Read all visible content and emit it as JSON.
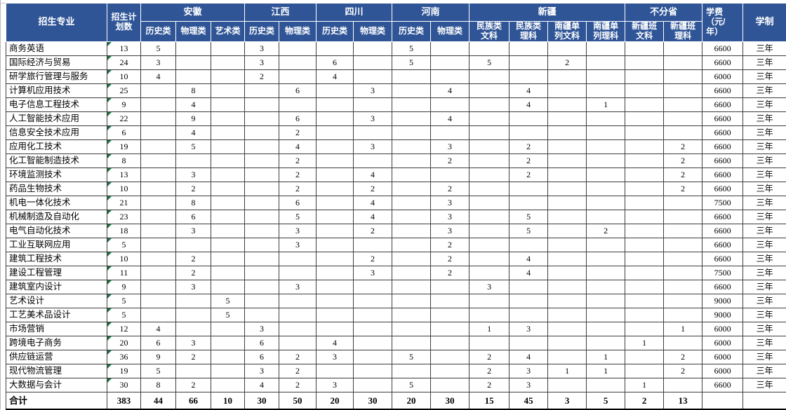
{
  "colors": {
    "header_bg": "#2F5597",
    "header_text": "#FFFFFF",
    "grid_line": "#3D3D3D",
    "error_triangle_green": "#1E7145"
  },
  "table": {
    "header": {
      "major": "招生专业",
      "plan": "招生计\n划数",
      "groups": [
        {
          "label": "安徽",
          "subs": [
            "历史类",
            "物理类",
            "艺术类"
          ]
        },
        {
          "label": "江西",
          "subs": [
            "历史类",
            "物理类"
          ]
        },
        {
          "label": "四川",
          "subs": [
            "历史类",
            "物理类"
          ]
        },
        {
          "label": "河南",
          "subs": [
            "历史类",
            "物理类"
          ]
        },
        {
          "label": "新疆",
          "subs": [
            "民族类\n文科",
            "民族类\n理科",
            "南疆单\n列文科",
            "南疆单\n列理科"
          ]
        },
        {
          "label": "不分省",
          "subs": [
            "新疆班\n文科",
            "新疆班\n理科"
          ]
        }
      ],
      "fee": "学费\n（元/\n年）",
      "duration": "学制"
    },
    "rows": [
      {
        "major": "商务英语",
        "plan": "13",
        "values": [
          "5",
          "",
          "",
          "3",
          "",
          "",
          "",
          "5",
          "",
          "",
          "",
          "",
          "",
          "",
          ""
        ],
        "fee": "6600",
        "duration": "三年"
      },
      {
        "major": "国际经济与贸易",
        "plan": "24",
        "values": [
          "3",
          "",
          "",
          "3",
          "",
          "6",
          "",
          "5",
          "",
          "5",
          "",
          "2",
          "",
          "",
          ""
        ],
        "fee": "6600",
        "duration": "三年"
      },
      {
        "major": "研学旅行管理与服务",
        "plan": "10",
        "values": [
          "4",
          "",
          "",
          "2",
          "",
          "4",
          "",
          "",
          "",
          "",
          "",
          "",
          "",
          "",
          ""
        ],
        "fee": "6000",
        "duration": "三年"
      },
      {
        "major": "计算机应用技术",
        "plan": "25",
        "values": [
          "",
          "8",
          "",
          "",
          "6",
          "",
          "3",
          "",
          "4",
          "",
          "4",
          "",
          "",
          "",
          ""
        ],
        "fee": "6600",
        "duration": "三年"
      },
      {
        "major": "电子信息工程技术",
        "plan": "9",
        "values": [
          "",
          "4",
          "",
          "",
          "",
          "",
          "",
          "",
          "",
          "",
          "4",
          "",
          "1",
          "",
          ""
        ],
        "fee": "6600",
        "duration": "三年"
      },
      {
        "major": "人工智能技术应用",
        "plan": "22",
        "values": [
          "",
          "9",
          "",
          "",
          "6",
          "",
          "3",
          "",
          "4",
          "",
          "",
          "",
          "",
          "",
          ""
        ],
        "fee": "6600",
        "duration": "三年"
      },
      {
        "major": "信息安全技术应用",
        "plan": "6",
        "values": [
          "",
          "4",
          "",
          "",
          "2",
          "",
          "",
          "",
          "",
          "",
          "",
          "",
          "",
          "",
          ""
        ],
        "fee": "6600",
        "duration": "三年"
      },
      {
        "major": "应用化工技术",
        "plan": "19",
        "values": [
          "",
          "5",
          "",
          "",
          "4",
          "",
          "3",
          "",
          "3",
          "",
          "2",
          "",
          "",
          "",
          "2"
        ],
        "fee": "6600",
        "duration": "三年"
      },
      {
        "major": "化工智能制造技术",
        "plan": "8",
        "values": [
          "",
          "",
          "",
          "",
          "2",
          "",
          "",
          "",
          "2",
          "",
          "2",
          "",
          "",
          "",
          "2"
        ],
        "fee": "6600",
        "duration": "三年"
      },
      {
        "major": "环境监测技术",
        "plan": "13",
        "values": [
          "",
          "3",
          "",
          "",
          "2",
          "",
          "4",
          "",
          "",
          "",
          "2",
          "",
          "",
          "",
          "2"
        ],
        "fee": "6600",
        "duration": "三年"
      },
      {
        "major": "药品生物技术",
        "plan": "10",
        "values": [
          "",
          "2",
          "",
          "",
          "2",
          "",
          "2",
          "",
          "2",
          "",
          "",
          "",
          "",
          "",
          "2"
        ],
        "fee": "6600",
        "duration": "三年"
      },
      {
        "major": "机电一体化技术",
        "plan": "21",
        "values": [
          "",
          "8",
          "",
          "",
          "6",
          "",
          "4",
          "",
          "3",
          "",
          "",
          "",
          "",
          "",
          ""
        ],
        "fee": "7500",
        "duration": "三年"
      },
      {
        "major": "机械制造及自动化",
        "plan": "23",
        "values": [
          "",
          "6",
          "",
          "",
          "5",
          "",
          "4",
          "",
          "3",
          "",
          "5",
          "",
          "",
          "",
          ""
        ],
        "fee": "6600",
        "duration": "三年"
      },
      {
        "major": "电气自动化技术",
        "plan": "18",
        "values": [
          "",
          "3",
          "",
          "",
          "3",
          "",
          "2",
          "",
          "3",
          "",
          "5",
          "",
          "2",
          "",
          ""
        ],
        "fee": "6600",
        "duration": "三年"
      },
      {
        "major": "工业互联网应用",
        "plan": "5",
        "values": [
          "",
          "",
          "",
          "",
          "3",
          "",
          "",
          "",
          "2",
          "",
          "",
          "",
          "",
          "",
          ""
        ],
        "fee": "6600",
        "duration": "三年"
      },
      {
        "major": "建筑工程技术",
        "plan": "10",
        "values": [
          "",
          "2",
          "",
          "",
          "",
          "",
          "2",
          "",
          "2",
          "",
          "4",
          "",
          "",
          "",
          ""
        ],
        "fee": "6600",
        "duration": "三年"
      },
      {
        "major": "建设工程管理",
        "plan": "11",
        "values": [
          "",
          "2",
          "",
          "",
          "",
          "",
          "3",
          "",
          "2",
          "",
          "4",
          "",
          "",
          "",
          ""
        ],
        "fee": "7500",
        "duration": "三年"
      },
      {
        "major": "建筑室内设计",
        "plan": "9",
        "values": [
          "",
          "3",
          "",
          "",
          "3",
          "",
          "",
          "",
          "",
          "3",
          "",
          "",
          "",
          "",
          ""
        ],
        "fee": "6600",
        "duration": "三年"
      },
      {
        "major": "艺术设计",
        "plan": "5",
        "values": [
          "",
          "",
          "5",
          "",
          "",
          "",
          "",
          "",
          "",
          "",
          "",
          "",
          "",
          "",
          ""
        ],
        "fee": "9000",
        "duration": "三年"
      },
      {
        "major": "工艺美术品设计",
        "plan": "5",
        "values": [
          "",
          "",
          "5",
          "",
          "",
          "",
          "",
          "",
          "",
          "",
          "",
          "",
          "",
          "",
          ""
        ],
        "fee": "9000",
        "duration": "三年"
      },
      {
        "major": "市场营销",
        "plan": "12",
        "values": [
          "4",
          "",
          "",
          "3",
          "",
          "",
          "",
          "",
          "",
          "1",
          "3",
          "",
          "",
          "",
          "1"
        ],
        "fee": "6000",
        "duration": "三年"
      },
      {
        "major": "跨境电子商务",
        "plan": "20",
        "values": [
          "6",
          "3",
          "",
          "6",
          "",
          "4",
          "",
          "",
          "",
          "",
          "",
          "",
          "",
          "1",
          ""
        ],
        "fee": "6000",
        "duration": "三年"
      },
      {
        "major": "供应链运营",
        "plan": "36",
        "values": [
          "9",
          "2",
          "",
          "6",
          "2",
          "3",
          "",
          "5",
          "",
          "2",
          "4",
          "",
          "1",
          "",
          "2"
        ],
        "fee": "6000",
        "duration": "三年"
      },
      {
        "major": "现代物流管理",
        "plan": "19",
        "values": [
          "5",
          "",
          "",
          "3",
          "2",
          "",
          "",
          "",
          "",
          "2",
          "3",
          "1",
          "1",
          "",
          "2"
        ],
        "fee": "6000",
        "duration": "三年"
      },
      {
        "major": "大数据与会计",
        "plan": "30",
        "values": [
          "8",
          "2",
          "",
          "4",
          "2",
          "3",
          "",
          "5",
          "",
          "2",
          "3",
          "",
          "",
          "1",
          ""
        ],
        "fee": "6600",
        "duration": "三年"
      }
    ],
    "total": {
      "major": "合计",
      "plan": "383",
      "values": [
        "44",
        "66",
        "10",
        "30",
        "50",
        "20",
        "30",
        "20",
        "30",
        "15",
        "45",
        "3",
        "5",
        "2",
        "13"
      ],
      "fee": "",
      "duration": ""
    }
  }
}
